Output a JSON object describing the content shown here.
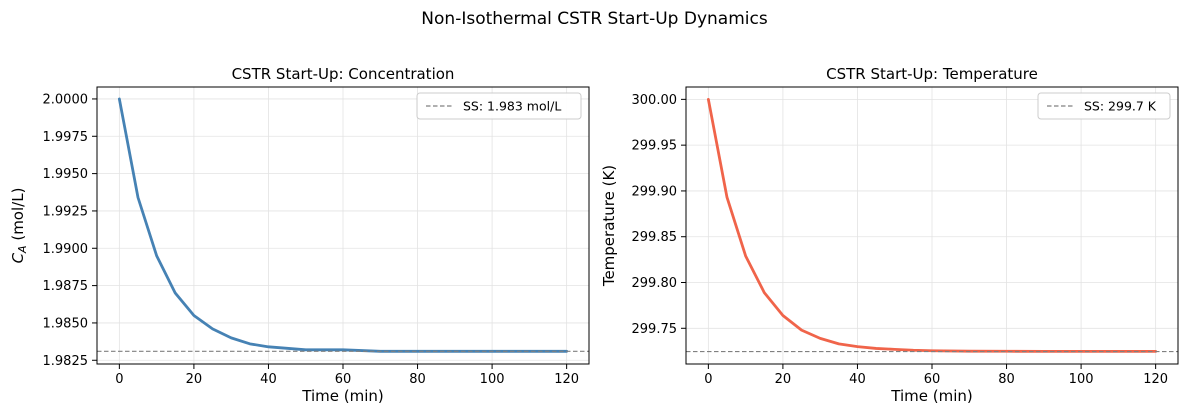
{
  "figure": {
    "suptitle": "Non-Isothermal CSTR Start-Up Dynamics"
  },
  "chart_data": [
    {
      "type": "line",
      "title": "CSTR Start-Up: Concentration",
      "xlabel": "Time (min)",
      "ylabel": "C_A (mol/L)",
      "xlim": [
        -6,
        126
      ],
      "ylim": [
        1.98225,
        2.0008
      ],
      "xticks": [
        0,
        20,
        40,
        60,
        80,
        100,
        120
      ],
      "yticks": [
        1.9825,
        1.985,
        1.9875,
        1.99,
        1.9925,
        1.995,
        1.9975,
        2.0
      ],
      "ytick_labels": [
        "1.9825",
        "1.9850",
        "1.9875",
        "1.9900",
        "1.9925",
        "1.9950",
        "1.9975",
        "2.0000"
      ],
      "grid": true,
      "legend": "upper right",
      "series": [
        {
          "color": "#4682B4",
          "style": "solid",
          "x": [
            0,
            5,
            10,
            15,
            20,
            25,
            30,
            35,
            40,
            45,
            50,
            55,
            60,
            70,
            80,
            90,
            100,
            110,
            120
          ],
          "y": [
            2.0,
            1.9934,
            1.9895,
            1.987,
            1.9855,
            1.9846,
            1.984,
            1.9836,
            1.9834,
            1.9833,
            1.9832,
            1.9832,
            1.9832,
            1.9831,
            1.9831,
            1.9831,
            1.9831,
            1.9831,
            1.9831
          ]
        },
        {
          "name": "SS: 1.983 mol/L",
          "color": "#808080",
          "style": "dashed",
          "y_constant": 1.9831
        }
      ]
    },
    {
      "type": "line",
      "title": "CSTR Start-Up: Temperature",
      "xlabel": "Time (min)",
      "ylabel": "Temperature (K)",
      "xlim": [
        -6,
        126
      ],
      "ylim": [
        299.711,
        300.0135
      ],
      "xticks": [
        0,
        20,
        40,
        60,
        80,
        100,
        120
      ],
      "yticks": [
        299.75,
        299.8,
        299.85,
        299.9,
        299.95,
        300.0
      ],
      "ytick_labels": [
        "299.75",
        "299.80",
        "299.85",
        "299.90",
        "299.95",
        "300.00"
      ],
      "grid": true,
      "legend": "upper right",
      "series": [
        {
          "color": "#F0644A",
          "style": "solid",
          "x": [
            0,
            5,
            10,
            15,
            20,
            25,
            30,
            35,
            40,
            45,
            50,
            55,
            60,
            70,
            80,
            90,
            100,
            110,
            120
          ],
          "y": [
            300.0,
            299.893,
            299.829,
            299.789,
            299.764,
            299.748,
            299.739,
            299.733,
            299.73,
            299.728,
            299.727,
            299.726,
            299.7255,
            299.725,
            299.7249,
            299.7248,
            299.7248,
            299.7248,
            299.7248
          ]
        },
        {
          "name": "SS: 299.7 K",
          "color": "#808080",
          "style": "dashed",
          "y_constant": 299.7246
        }
      ]
    }
  ]
}
